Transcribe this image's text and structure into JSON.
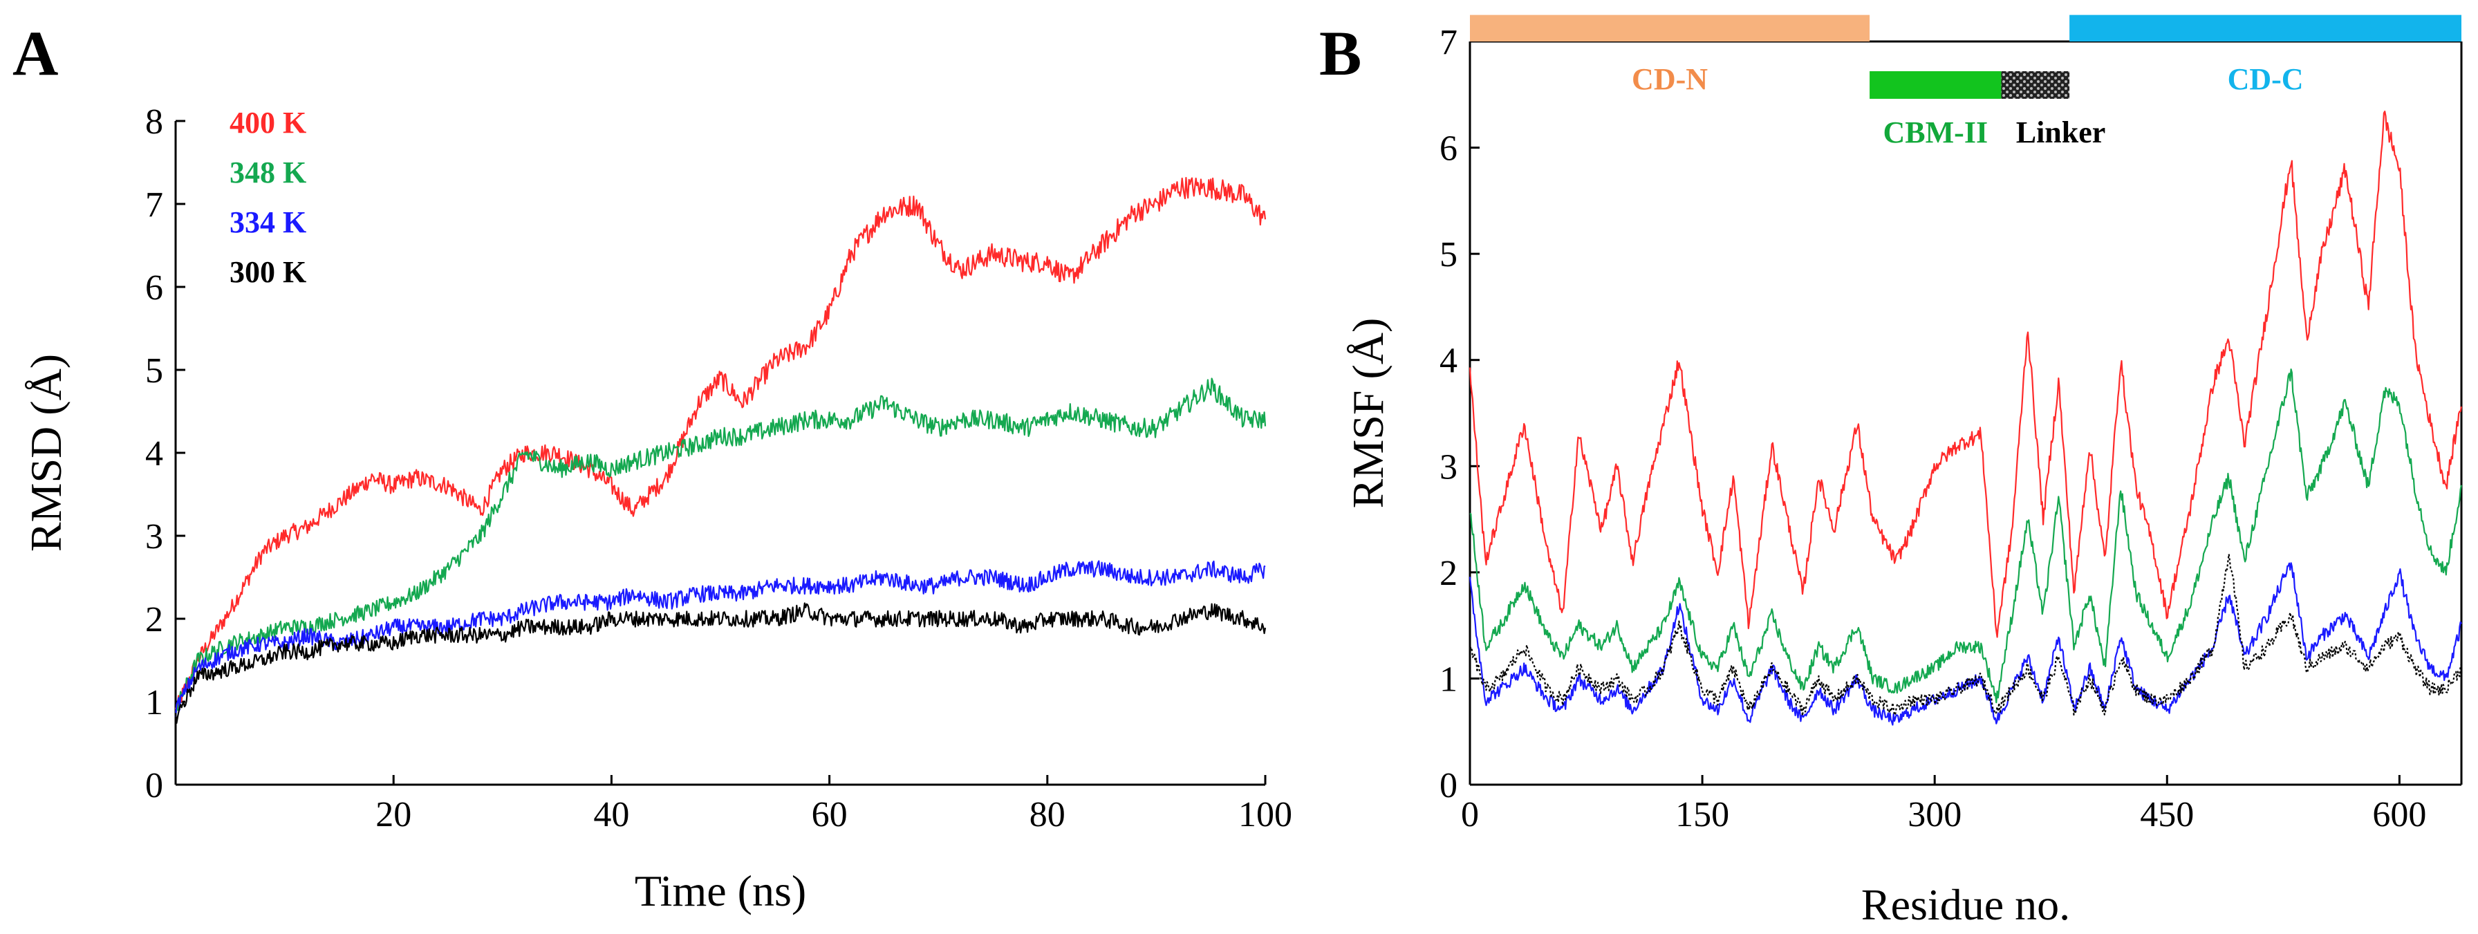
{
  "panels": {
    "a": {
      "label": "A"
    },
    "b": {
      "label": "B"
    }
  },
  "chart_data": [
    {
      "type": "line",
      "xlabel": "Time (ns)",
      "ylabel": "RMSD (Å)",
      "xlim": [
        0,
        100
      ],
      "ylim": [
        0,
        8
      ],
      "xticks": [
        20,
        40,
        60,
        80,
        100
      ],
      "yticks": [
        0,
        1,
        2,
        3,
        4,
        5,
        6,
        7,
        8
      ],
      "grid": false,
      "legend_position": "top-left",
      "series": [
        {
          "name": "400 K",
          "color": "#ff2a2a",
          "x": [
            0,
            2,
            5,
            8,
            10,
            12,
            15,
            18,
            20,
            22,
            25,
            28,
            30,
            32,
            35,
            38,
            40,
            42,
            45,
            48,
            50,
            52,
            55,
            58,
            60,
            62,
            65,
            68,
            70,
            72,
            75,
            78,
            80,
            82,
            85,
            88,
            90,
            92,
            95,
            98,
            100
          ],
          "y": [
            0.9,
            1.5,
            2.1,
            2.8,
            3.0,
            3.1,
            3.4,
            3.7,
            3.6,
            3.7,
            3.6,
            3.3,
            3.8,
            4.0,
            4.0,
            3.8,
            3.6,
            3.3,
            3.7,
            4.6,
            4.9,
            4.6,
            5.1,
            5.3,
            5.7,
            6.4,
            6.9,
            7.0,
            6.5,
            6.2,
            6.4,
            6.3,
            6.3,
            6.1,
            6.5,
            6.9,
            7.0,
            7.2,
            7.2,
            7.1,
            6.8
          ]
        },
        {
          "name": "348 K",
          "color": "#14a850",
          "x": [
            0,
            2,
            5,
            8,
            10,
            12,
            15,
            18,
            20,
            22,
            25,
            28,
            30,
            32,
            35,
            38,
            40,
            42,
            45,
            48,
            50,
            52,
            55,
            58,
            60,
            62,
            65,
            68,
            70,
            72,
            75,
            78,
            80,
            82,
            85,
            88,
            90,
            92,
            95,
            98,
            100
          ],
          "y": [
            0.9,
            1.5,
            1.7,
            1.8,
            1.9,
            1.9,
            2.0,
            2.1,
            2.2,
            2.3,
            2.6,
            3.0,
            3.5,
            4.0,
            3.8,
            3.9,
            3.8,
            3.9,
            4.0,
            4.1,
            4.2,
            4.2,
            4.3,
            4.4,
            4.4,
            4.4,
            4.6,
            4.4,
            4.3,
            4.4,
            4.4,
            4.3,
            4.4,
            4.5,
            4.4,
            4.3,
            4.3,
            4.5,
            4.8,
            4.4,
            4.4
          ]
        },
        {
          "name": "334 K",
          "color": "#1a1aff",
          "x": [
            0,
            2,
            5,
            8,
            10,
            12,
            15,
            18,
            20,
            22,
            25,
            28,
            30,
            32,
            35,
            38,
            40,
            42,
            45,
            48,
            50,
            52,
            55,
            58,
            60,
            62,
            65,
            68,
            70,
            72,
            75,
            78,
            80,
            82,
            85,
            88,
            90,
            92,
            95,
            98,
            100
          ],
          "y": [
            0.9,
            1.4,
            1.6,
            1.7,
            1.7,
            1.8,
            1.7,
            1.8,
            1.9,
            1.9,
            1.9,
            2.0,
            2.0,
            2.1,
            2.2,
            2.2,
            2.2,
            2.3,
            2.2,
            2.3,
            2.3,
            2.3,
            2.4,
            2.4,
            2.4,
            2.4,
            2.5,
            2.4,
            2.4,
            2.5,
            2.5,
            2.4,
            2.5,
            2.6,
            2.6,
            2.5,
            2.5,
            2.5,
            2.6,
            2.5,
            2.6
          ]
        },
        {
          "name": "300 K",
          "color": "#000000",
          "x": [
            0,
            2,
            5,
            8,
            10,
            12,
            15,
            18,
            20,
            22,
            25,
            28,
            30,
            32,
            35,
            38,
            40,
            42,
            45,
            48,
            50,
            52,
            55,
            58,
            60,
            62,
            65,
            68,
            70,
            72,
            75,
            78,
            80,
            82,
            85,
            88,
            90,
            92,
            95,
            98,
            100
          ],
          "y": [
            0.8,
            1.3,
            1.4,
            1.5,
            1.6,
            1.6,
            1.7,
            1.7,
            1.7,
            1.8,
            1.8,
            1.8,
            1.8,
            1.9,
            1.9,
            1.9,
            2.0,
            2.0,
            2.0,
            2.0,
            2.0,
            2.0,
            2.0,
            2.1,
            2.0,
            2.0,
            2.0,
            2.0,
            2.0,
            2.0,
            2.0,
            1.9,
            2.0,
            2.0,
            2.0,
            1.9,
            1.9,
            2.0,
            2.1,
            2.0,
            1.9
          ]
        }
      ]
    },
    {
      "type": "line",
      "xlabel": "Residue no.",
      "ylabel": "RMSF (Å)",
      "xlim": [
        0,
        640
      ],
      "ylim": [
        0,
        7
      ],
      "xticks": [
        0,
        150,
        300,
        450,
        600
      ],
      "yticks": [
        0,
        1,
        2,
        3,
        4,
        5,
        6,
        7
      ],
      "grid": false,
      "domains": [
        {
          "label": "CD-N",
          "start": 0,
          "end": 258,
          "color": "#f7b27d",
          "text_color": "#f28c4a",
          "row": "top"
        },
        {
          "label": "CBM-II",
          "start": 258,
          "end": 343,
          "color": "#12c41e",
          "text_color": "#12a83a",
          "row": "lower"
        },
        {
          "label": "Linker",
          "start": 343,
          "end": 387,
          "color": "#1a1a1a",
          "text_color": "#000000",
          "row": "lower",
          "pattern": "dotted"
        },
        {
          "label": "CD-C",
          "start": 387,
          "end": 640,
          "color": "#12b4ec",
          "text_color": "#12b4ec",
          "row": "top"
        }
      ],
      "series": [
        {
          "color": "#ff2a2a",
          "x": [
            0,
            10,
            20,
            35,
            50,
            60,
            70,
            85,
            95,
            105,
            115,
            125,
            135,
            150,
            160,
            170,
            180,
            195,
            205,
            215,
            225,
            235,
            250,
            260,
            275,
            285,
            300,
            315,
            330,
            340,
            350,
            360,
            370,
            380,
            390,
            400,
            410,
            420,
            430,
            440,
            450,
            465,
            480,
            490,
            500,
            515,
            530,
            540,
            550,
            565,
            580,
            590,
            600,
            610,
            620,
            630,
            640
          ],
          "y": [
            3.9,
            2.1,
            2.6,
            3.4,
            2.2,
            1.6,
            3.3,
            2.4,
            3.0,
            2.1,
            2.8,
            3.4,
            4.0,
            2.6,
            2.0,
            2.9,
            1.5,
            3.2,
            2.5,
            1.8,
            2.9,
            2.4,
            3.4,
            2.5,
            2.1,
            2.4,
            3.0,
            3.2,
            3.3,
            1.4,
            2.4,
            4.3,
            2.5,
            3.8,
            1.8,
            3.2,
            2.1,
            4.0,
            2.8,
            2.3,
            1.6,
            2.6,
            3.8,
            4.2,
            3.2,
            4.5,
            5.9,
            4.2,
            5.0,
            5.8,
            4.5,
            6.3,
            5.8,
            4.1,
            3.4,
            2.8,
            3.6
          ]
        },
        {
          "color": "#14a850",
          "x": [
            0,
            10,
            20,
            35,
            50,
            60,
            70,
            85,
            95,
            105,
            115,
            125,
            135,
            150,
            160,
            170,
            180,
            195,
            205,
            215,
            225,
            235,
            250,
            260,
            275,
            285,
            300,
            315,
            330,
            340,
            350,
            360,
            370,
            380,
            390,
            400,
            410,
            420,
            430,
            440,
            450,
            465,
            480,
            490,
            500,
            515,
            530,
            540,
            550,
            565,
            580,
            590,
            600,
            610,
            620,
            630,
            640
          ],
          "y": [
            2.6,
            1.3,
            1.5,
            1.9,
            1.4,
            1.2,
            1.5,
            1.3,
            1.5,
            1.1,
            1.3,
            1.5,
            1.9,
            1.2,
            1.1,
            1.5,
            1.0,
            1.6,
            1.2,
            0.9,
            1.3,
            1.1,
            1.5,
            1.0,
            0.9,
            1.0,
            1.1,
            1.3,
            1.3,
            0.8,
            1.6,
            2.5,
            1.6,
            2.7,
            1.3,
            1.8,
            1.1,
            2.8,
            1.8,
            1.5,
            1.2,
            1.7,
            2.5,
            2.9,
            2.1,
            3.0,
            3.9,
            2.7,
            3.0,
            3.6,
            2.8,
            3.7,
            3.6,
            2.8,
            2.2,
            2.0,
            2.8
          ]
        },
        {
          "color": "#1a1aff",
          "x": [
            0,
            10,
            20,
            35,
            50,
            60,
            70,
            85,
            95,
            105,
            115,
            125,
            135,
            150,
            160,
            170,
            180,
            195,
            205,
            215,
            225,
            235,
            250,
            260,
            275,
            285,
            300,
            315,
            330,
            340,
            350,
            360,
            370,
            380,
            390,
            400,
            410,
            420,
            430,
            440,
            450,
            465,
            480,
            490,
            500,
            515,
            530,
            540,
            550,
            565,
            580,
            590,
            600,
            610,
            620,
            630,
            640
          ],
          "y": [
            1.9,
            0.8,
            0.9,
            1.1,
            0.8,
            0.7,
            1.0,
            0.8,
            0.9,
            0.7,
            0.9,
            1.1,
            1.7,
            0.8,
            0.7,
            1.0,
            0.6,
            1.1,
            0.8,
            0.6,
            0.9,
            0.7,
            1.0,
            0.7,
            0.6,
            0.7,
            0.8,
            0.9,
            1.0,
            0.6,
            0.9,
            1.2,
            0.8,
            1.4,
            0.7,
            1.1,
            0.7,
            1.4,
            0.9,
            0.8,
            0.7,
            1.0,
            1.3,
            1.8,
            1.2,
            1.6,
            2.1,
            1.2,
            1.4,
            1.6,
            1.2,
            1.6,
            2.0,
            1.4,
            1.1,
            1.0,
            1.5
          ]
        },
        {
          "color": "#000000",
          "dash": "dotted",
          "x": [
            0,
            10,
            20,
            35,
            50,
            60,
            70,
            85,
            95,
            105,
            115,
            125,
            135,
            150,
            160,
            170,
            180,
            195,
            205,
            215,
            225,
            235,
            250,
            260,
            275,
            285,
            300,
            315,
            330,
            340,
            350,
            360,
            370,
            380,
            390,
            400,
            410,
            420,
            430,
            440,
            450,
            465,
            480,
            490,
            500,
            515,
            530,
            540,
            550,
            565,
            580,
            590,
            600,
            610,
            620,
            630,
            640
          ],
          "y": [
            1.3,
            0.9,
            1.0,
            1.3,
            0.9,
            0.8,
            1.1,
            0.9,
            1.0,
            0.8,
            0.9,
            1.1,
            1.5,
            0.9,
            0.8,
            1.1,
            0.7,
            1.1,
            0.9,
            0.7,
            1.0,
            0.8,
            1.0,
            0.8,
            0.7,
            0.8,
            0.8,
            0.9,
            1.0,
            0.7,
            0.9,
            1.1,
            0.8,
            1.2,
            0.7,
            1.0,
            0.7,
            1.2,
            0.9,
            0.8,
            0.8,
            1.0,
            1.3,
            2.2,
            1.1,
            1.3,
            1.6,
            1.1,
            1.2,
            1.3,
            1.1,
            1.3,
            1.4,
            1.1,
            0.9,
            0.9,
            1.1
          ]
        }
      ]
    }
  ]
}
